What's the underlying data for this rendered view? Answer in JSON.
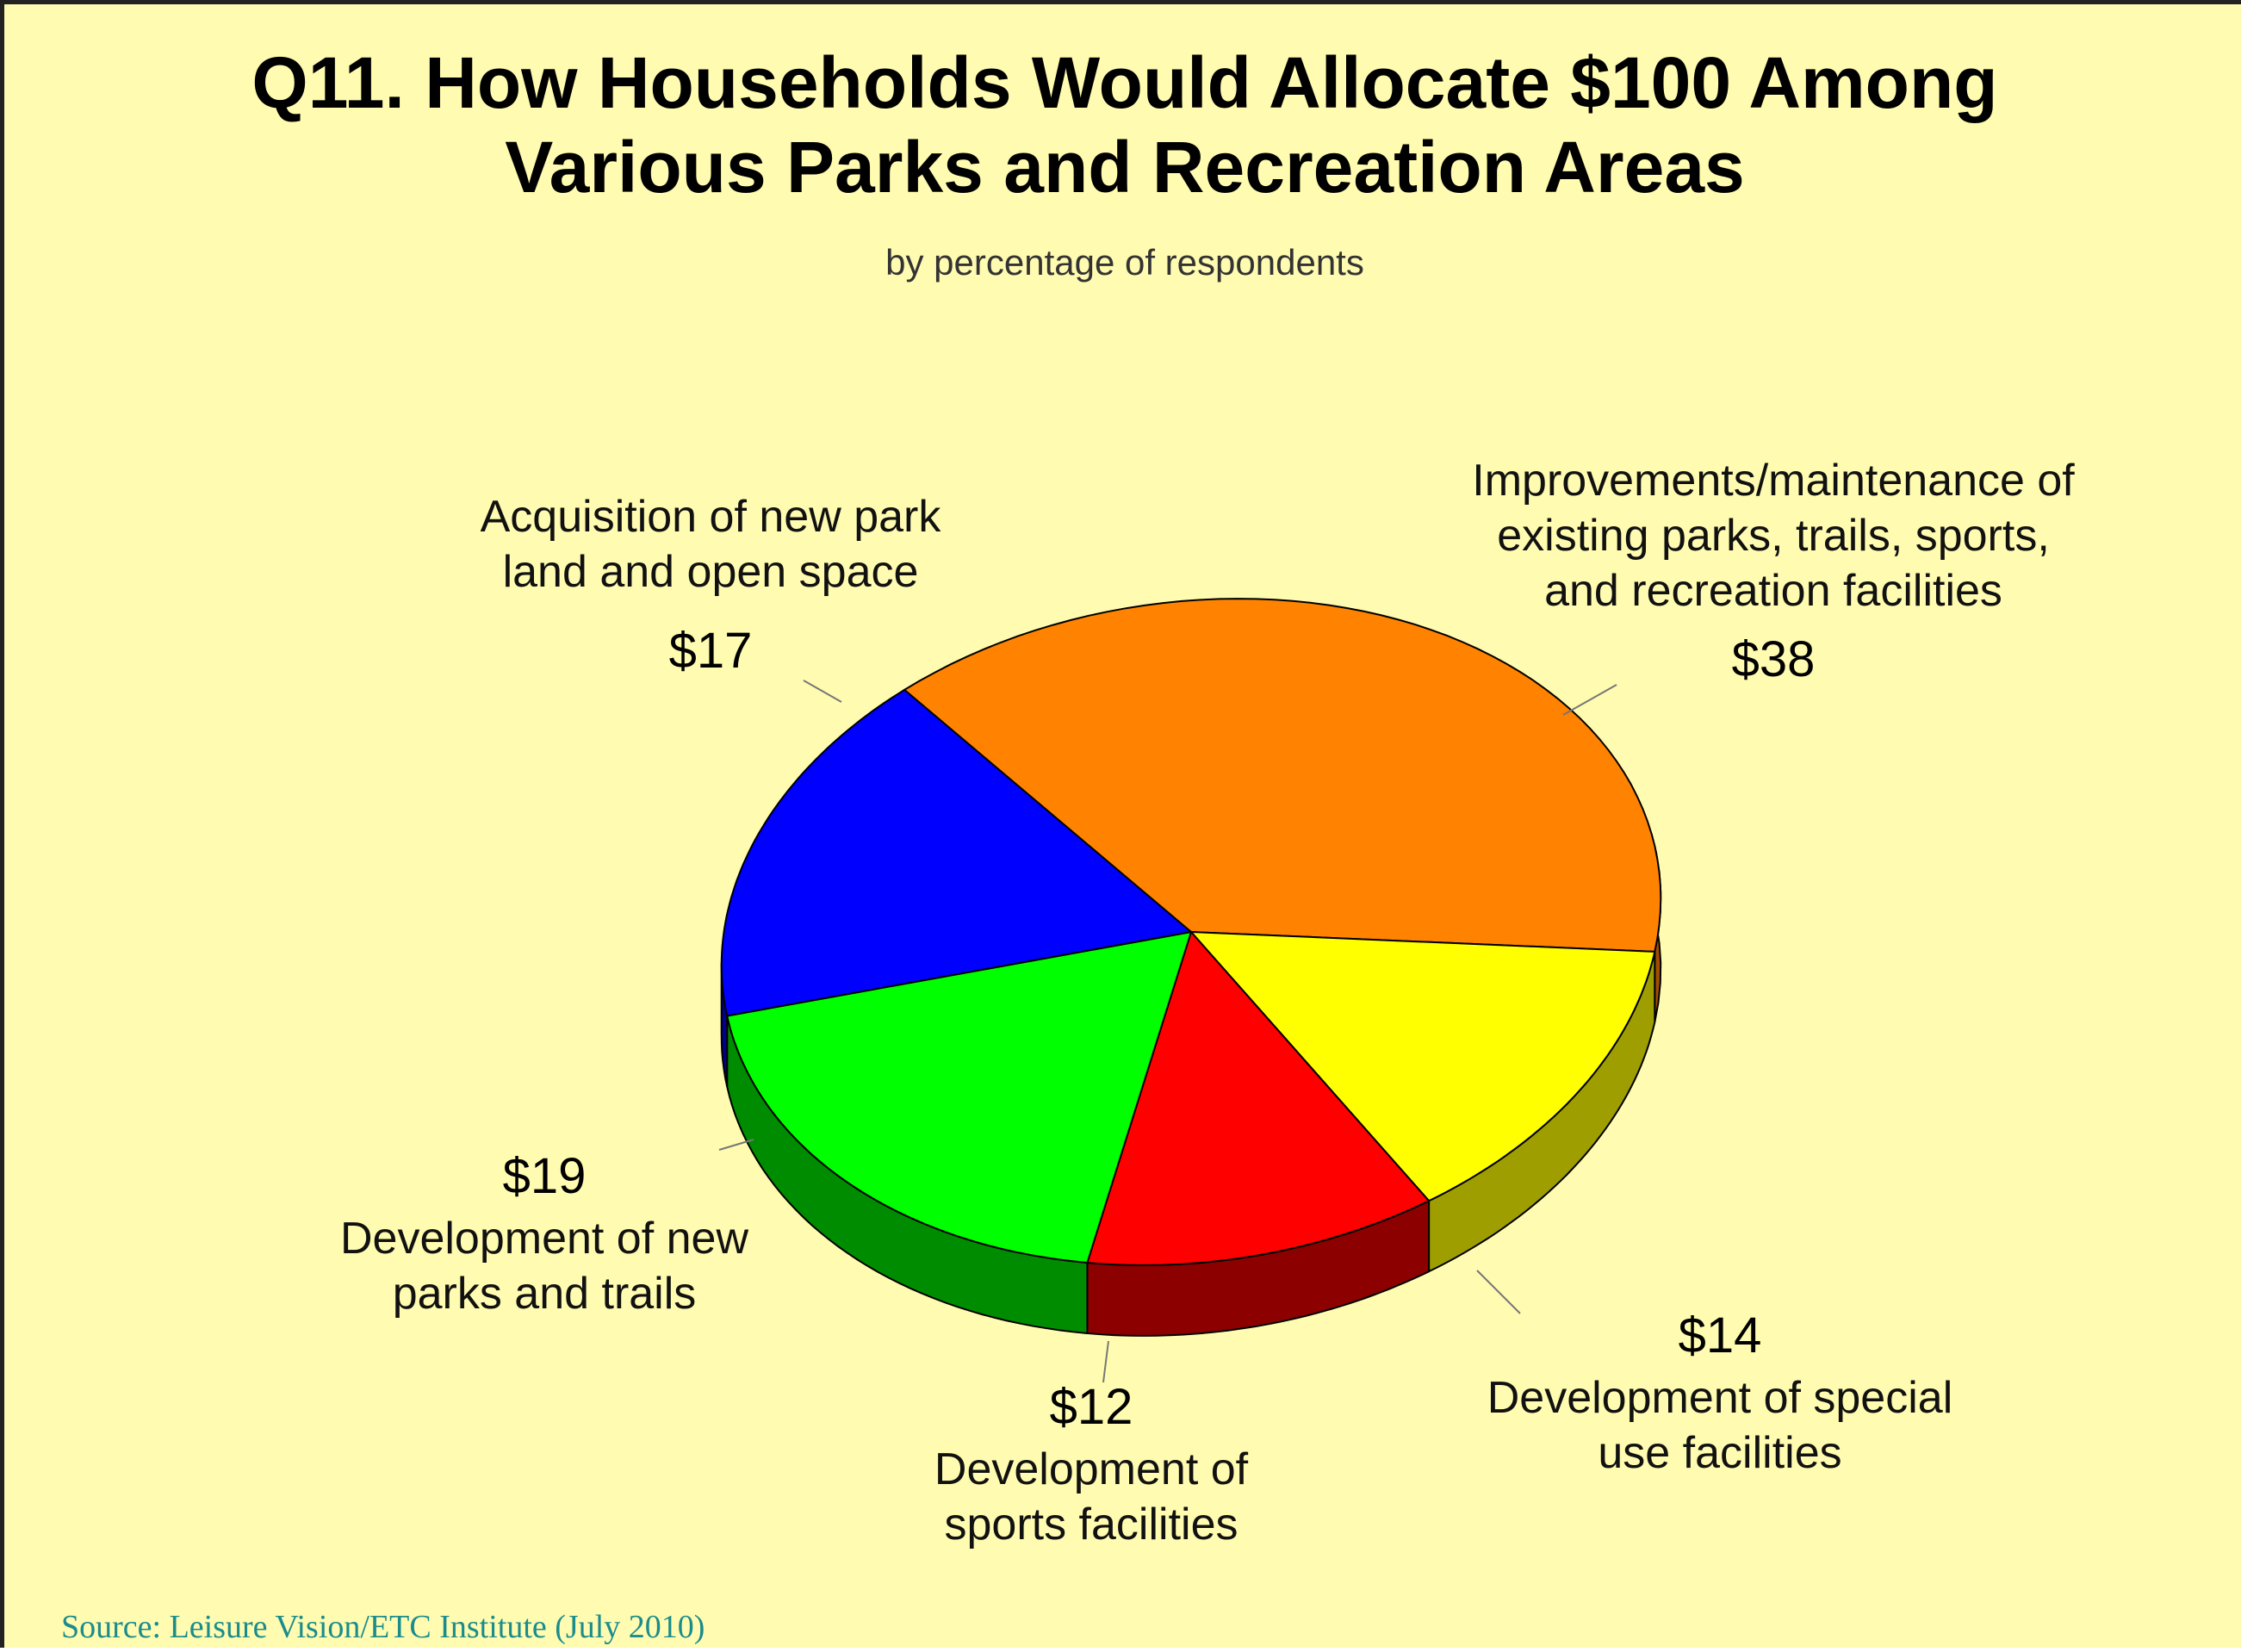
{
  "chart_data": {
    "type": "pie",
    "title": "Q11. How Households Would Allocate $100 Among Various Parks and Recreation Areas",
    "title_lines": [
      "Q11.  How Households Would Allocate $100 Among",
      "Various Parks and Recreation Areas"
    ],
    "subtitle": "by percentage of respondents",
    "slices": [
      {
        "label_lines": [
          "Improvements/maintenance of",
          "existing parks, trails, sports,",
          "and recreation facilities"
        ],
        "value_label": "$38",
        "value": 38,
        "color": "#ff8200",
        "side_color": "#a04e00"
      },
      {
        "label_lines": [
          "Development of special",
          "use facilities"
        ],
        "value_label": "$14",
        "value": 14,
        "color": "#ffff00",
        "side_color": "#9e9e00"
      },
      {
        "label_lines": [
          "Development of",
          "sports facilities"
        ],
        "value_label": "$12",
        "value": 12,
        "color": "#ff0000",
        "side_color": "#8c0000"
      },
      {
        "label_lines": [
          "Development of new",
          "parks and trails"
        ],
        "value_label": "$19",
        "value": 19,
        "color": "#00ff00",
        "side_color": "#008c00"
      },
      {
        "label_lines": [
          "Acquisition of new park",
          "land and open space"
        ],
        "value_label": "$17",
        "value": 17,
        "color": "#0000ff",
        "side_color": "#00008c"
      }
    ]
  },
  "source": "Source:  Leisure Vision/ETC Institute (July 2010)"
}
